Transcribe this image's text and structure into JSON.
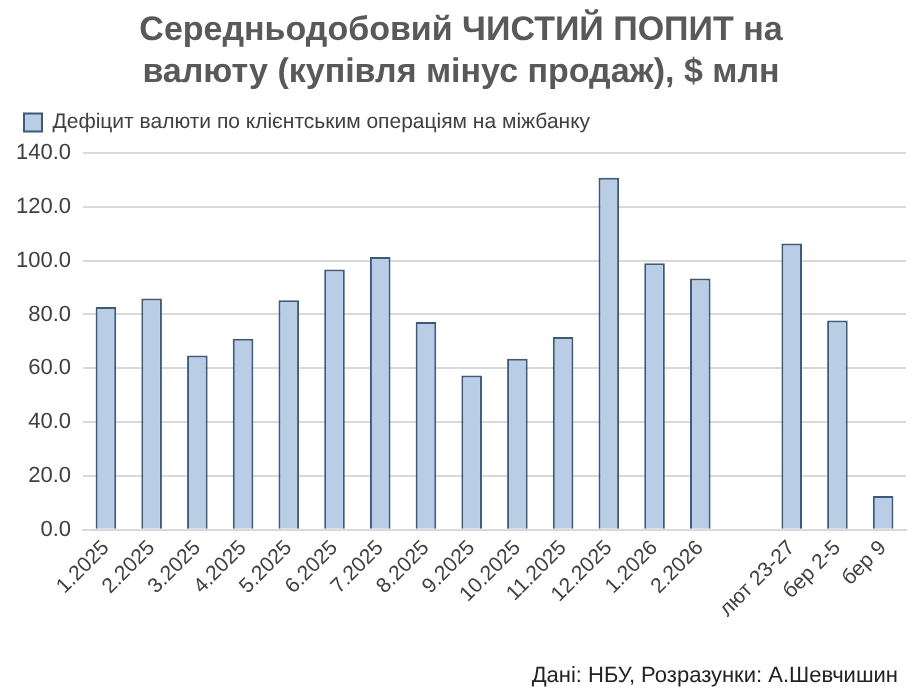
{
  "chart_data": {
    "type": "bar",
    "title": "Середньодобовий ЧИСТИЙ ПОПИТ на валюту (купівля мінус продаж), $ млн",
    "categories": [
      "1.2025",
      "2.2025",
      "3.2025",
      "4.2025",
      "5.2025",
      "6.2025",
      "7.2025",
      "8.2025",
      "9.2025",
      "10.2025",
      "11.2025",
      "12.2025",
      "1.2026",
      "2.2026",
      null,
      "лют 23-27",
      "бер 2-5",
      "бер 9"
    ],
    "series": [
      {
        "name": "Дефіцит валюти по клієнтським операціям на міжбанку",
        "color": "#b9cde5",
        "values": [
          82.8,
          85.9,
          64.8,
          71.0,
          85.3,
          96.7,
          101.4,
          77.2,
          57.3,
          63.6,
          71.6,
          130.8,
          99.0,
          93.4,
          null,
          106.4,
          77.8,
          12.6
        ]
      }
    ],
    "ylim": [
      0,
      140
    ],
    "yticks": [
      {
        "value": 0,
        "label": "0.0"
      },
      {
        "value": 20,
        "label": "20.0"
      },
      {
        "value": 40,
        "label": "40.0"
      },
      {
        "value": 60,
        "label": "60.0"
      },
      {
        "value": 80,
        "label": "80.0"
      },
      {
        "value": 100,
        "label": "100.0"
      },
      {
        "value": 120,
        "label": "120.0"
      },
      {
        "value": 140,
        "label": "140.0"
      }
    ],
    "grid": "y",
    "legend": "top left",
    "annotations": [
      "Дані: НБУ, Розразунки: А.Шевчишин"
    ]
  }
}
